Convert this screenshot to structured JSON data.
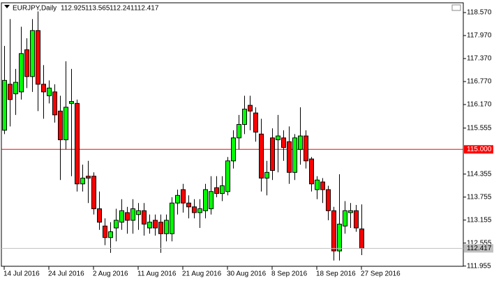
{
  "chart_data": {
    "type": "candlestick",
    "title": "EURJPY,Daily",
    "categories": [
      "14 Jul 2016",
      null,
      null,
      null,
      null,
      null,
      null,
      null,
      "24 Jul 2016",
      null,
      null,
      null,
      null,
      null,
      null,
      null,
      "2 Aug 2016",
      null,
      null,
      null,
      null,
      null,
      null,
      null,
      "11 Aug 2016",
      null,
      null,
      null,
      null,
      null,
      null,
      null,
      "21 Aug 2016",
      null,
      null,
      null,
      null,
      null,
      null,
      null,
      "30 Aug 2016",
      null,
      null,
      null,
      null,
      null,
      null,
      null,
      "8 Sep 2016",
      null,
      null,
      null,
      null,
      null,
      null,
      null,
      "18 Sep 2016",
      null,
      null,
      null,
      null,
      null,
      null,
      null,
      "27 Sep 2016"
    ],
    "open": [
      115.5,
      116.7,
      116.45,
      116.5,
      117.6,
      116.9,
      118.1,
      116.7,
      116.4,
      116.5,
      116.0,
      115.25,
      116.2,
      116.2,
      114.1,
      114.3,
      114.3,
      113.45,
      113.0,
      112.7,
      112.95,
      113.1,
      113.35,
      113.15,
      113.3,
      113.4,
      112.95,
      113.15,
      113.1,
      112.8,
      112.8,
      113.6,
      113.95,
      113.6,
      113.5,
      113.35,
      113.4,
      113.45,
      114.0,
      113.85,
      113.9,
      114.7,
      115.3,
      115.65,
      116.15,
      115.95,
      115.4,
      114.25,
      115.3,
      115.25,
      115.3,
      115.2,
      114.4,
      115.0,
      115.35,
      114.75,
      113.95,
      114.15,
      113.95,
      113.4,
      112.35,
      113.0,
      113.35,
      113.4,
      112.925
    ],
    "high": [
      117.7,
      118.4,
      117.1,
      118.2,
      117.9,
      118.4,
      118.6,
      117.2,
      116.8,
      116.7,
      116.4,
      117.3,
      117.1,
      116.3,
      114.6,
      114.7,
      114.4,
      113.9,
      113.2,
      113.1,
      113.45,
      113.7,
      113.5,
      113.7,
      113.6,
      113.6,
      113.3,
      113.3,
      113.3,
      113.3,
      113.75,
      113.95,
      114.1,
      113.8,
      113.7,
      113.7,
      114.1,
      114.3,
      114.3,
      114.3,
      114.8,
      115.5,
      115.9,
      116.4,
      116.4,
      116.1,
      115.8,
      114.7,
      115.55,
      115.9,
      115.5,
      115.6,
      115.4,
      116.1,
      115.5,
      114.8,
      114.3,
      114.25,
      114.05,
      113.5,
      114.35,
      113.65,
      113.6,
      113.55,
      113.565
    ],
    "low": [
      115.4,
      115.6,
      115.9,
      116.3,
      116.6,
      116.5,
      116.0,
      115.8,
      116.2,
      115.7,
      114.2,
      115.0,
      114.3,
      113.9,
      113.9,
      113.6,
      113.3,
      112.9,
      112.5,
      112.3,
      112.6,
      112.9,
      112.8,
      112.8,
      112.9,
      112.75,
      112.8,
      112.75,
      112.3,
      112.6,
      112.6,
      113.3,
      113.35,
      113.2,
      113.2,
      112.95,
      113.2,
      113.3,
      113.75,
      113.65,
      113.8,
      114.5,
      115.0,
      115.4,
      115.5,
      115.2,
      113.9,
      113.8,
      114.2,
      114.4,
      114.7,
      114.1,
      114.2,
      114.6,
      114.5,
      113.9,
      113.7,
      113.6,
      113.15,
      112.1,
      112.1,
      112.8,
      112.95,
      112.85,
      112.241
    ],
    "close": [
      116.8,
      116.3,
      116.75,
      117.5,
      116.9,
      118.1,
      116.7,
      116.5,
      116.6,
      115.9,
      115.25,
      116.1,
      116.25,
      114.1,
      114.25,
      114.25,
      113.45,
      113.1,
      112.7,
      112.85,
      113.15,
      113.4,
      113.15,
      113.45,
      113.4,
      113.05,
      113.1,
      112.95,
      112.8,
      113.15,
      113.6,
      113.8,
      113.6,
      113.5,
      113.35,
      113.45,
      113.95,
      113.9,
      113.85,
      114.05,
      114.7,
      115.3,
      115.65,
      116.05,
      116.0,
      115.45,
      114.25,
      114.4,
      114.45,
      115.35,
      115.05,
      114.4,
      115.3,
      115.35,
      114.7,
      114.1,
      114.2,
      113.95,
      113.4,
      112.35,
      113.05,
      113.4,
      113.4,
      112.95,
      112.417
    ],
    "up_color": "#00ff00",
    "down_color": "#ff0000",
    "ylim": [
      111.95,
      118.825
    ],
    "yticks": [
      {
        "value": 118.57,
        "label": "118.570"
      },
      {
        "value": 117.97,
        "label": "117.970"
      },
      {
        "value": 117.37,
        "label": "117.370"
      },
      {
        "value": 116.77,
        "label": "116.770"
      },
      {
        "value": 116.17,
        "label": "116.170"
      },
      {
        "value": 115.555,
        "label": "115.555"
      },
      {
        "value": 114.355,
        "label": "114.355"
      },
      {
        "value": 113.755,
        "label": "113.755"
      },
      {
        "value": 113.155,
        "label": "113.155"
      },
      {
        "value": 112.555,
        "label": "112.555"
      },
      {
        "value": 111.955,
        "label": "111.955"
      }
    ],
    "price_lines": [
      {
        "value": 115,
        "label": "115.000",
        "color": "#ff0000"
      }
    ]
  }
}
